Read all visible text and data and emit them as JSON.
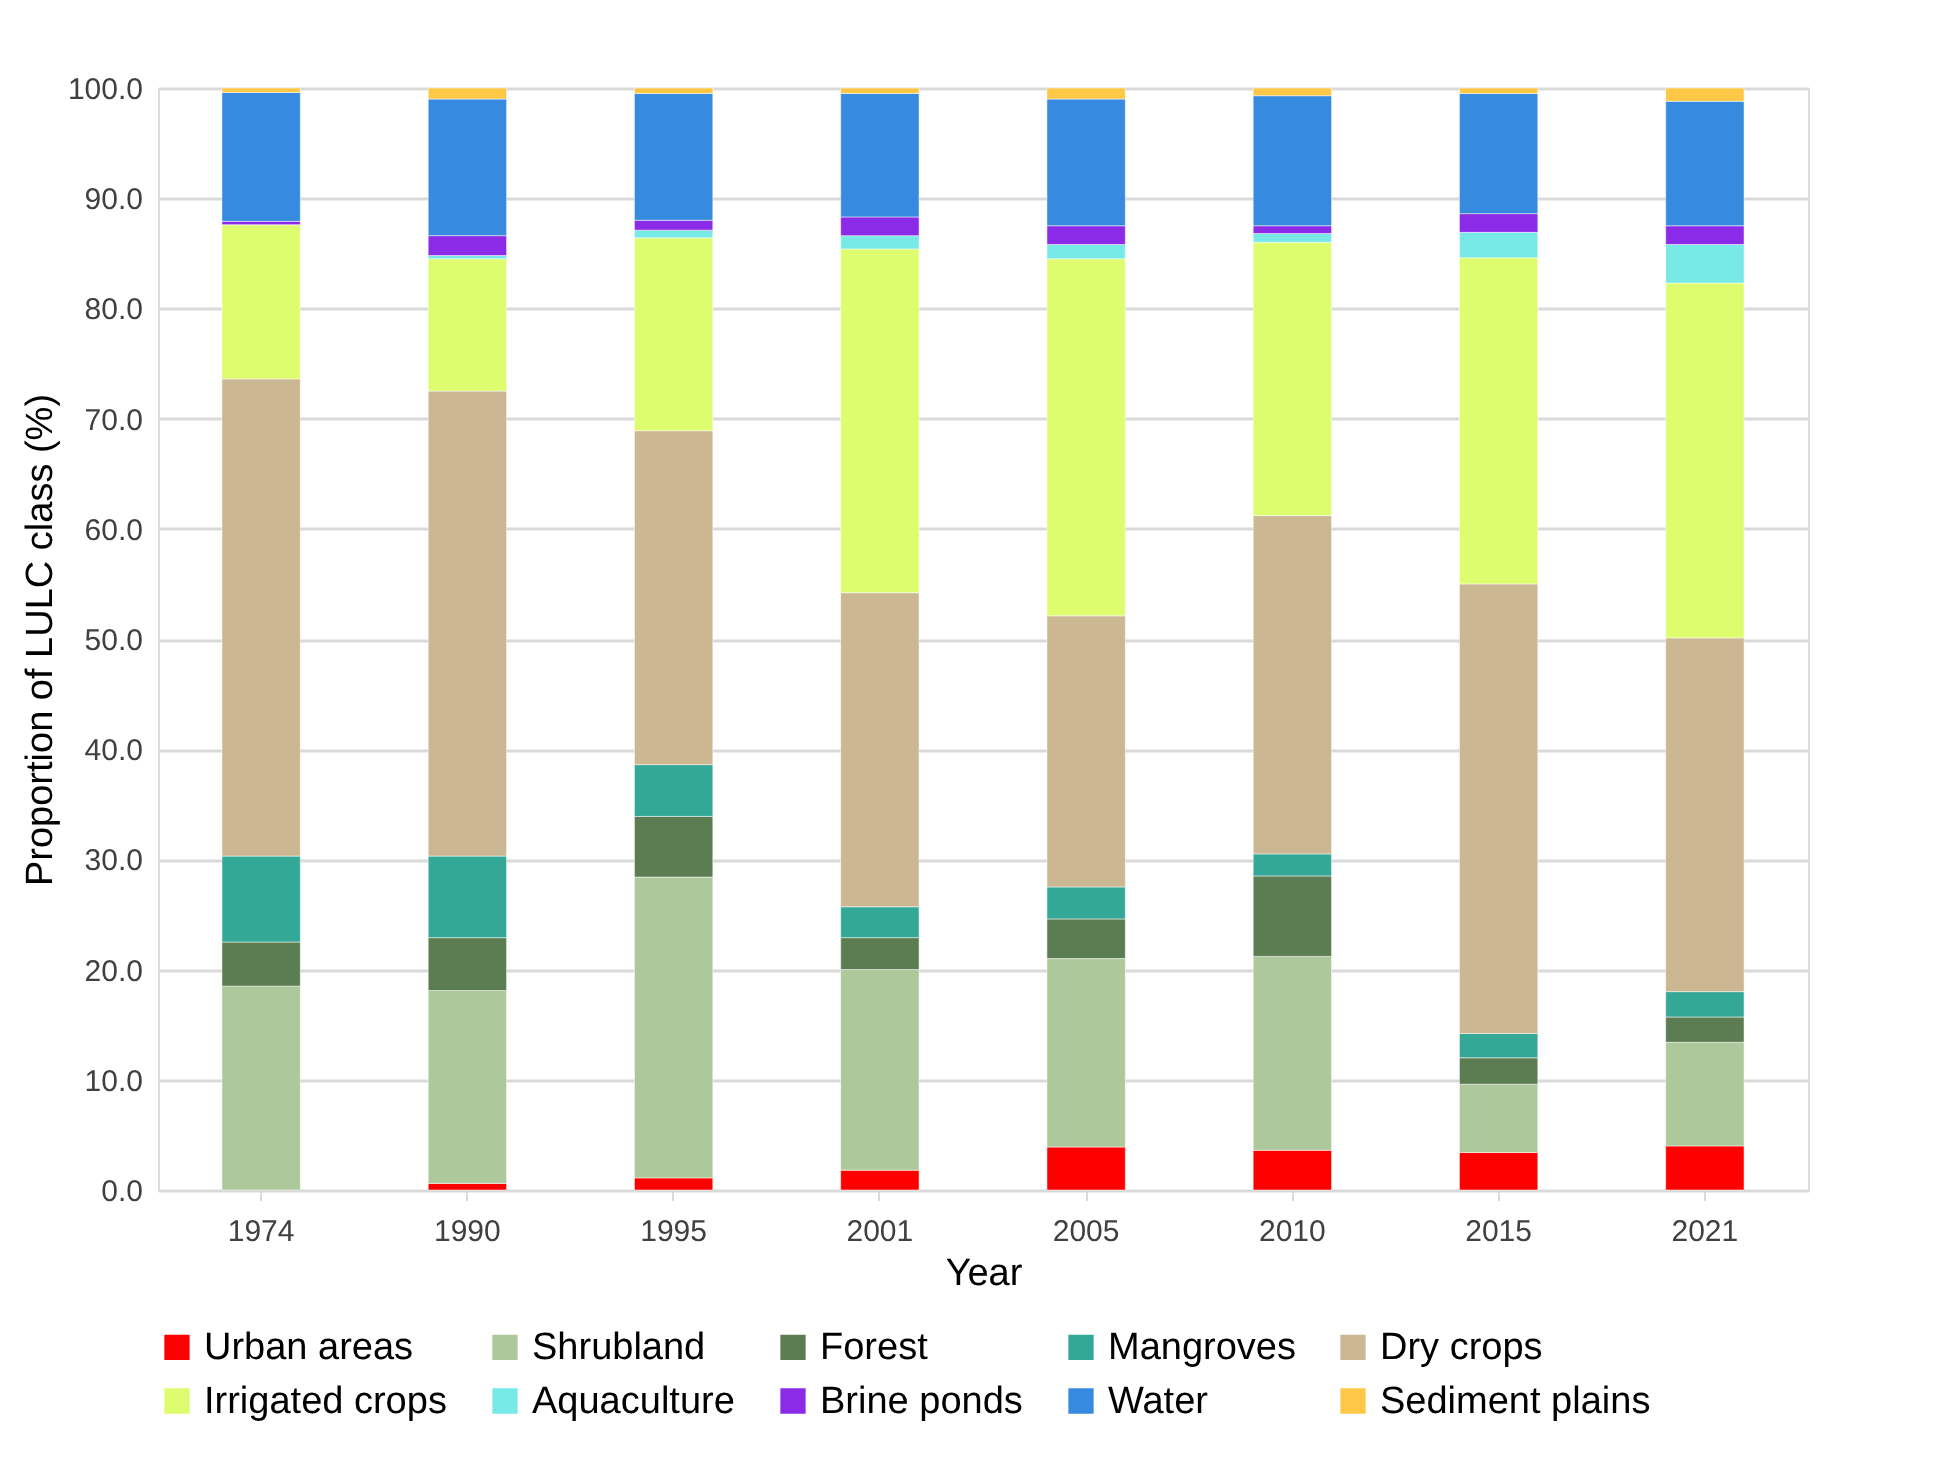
{
  "chart_data": {
    "type": "bar",
    "stacked": true,
    "xlabel": "Year",
    "ylabel": "Proportion of LULC class (%)",
    "categories": [
      "1974",
      "1990",
      "1995",
      "2001",
      "2005",
      "2010",
      "2015",
      "2021"
    ],
    "series": [
      {
        "name": "Urban areas",
        "color": "#ff0000",
        "values": [
          null,
          0.6,
          1.1,
          1.8,
          3.9,
          3.6,
          3.4,
          4.0
        ]
      },
      {
        "name": "Shrubland",
        "color": "#adc99b",
        "values": [
          18.5,
          17.5,
          27.3,
          18.2,
          17.1,
          17.6,
          6.2,
          9.4
        ]
      },
      {
        "name": "Forest",
        "color": "#5c7d52",
        "values": [
          4.0,
          4.8,
          5.5,
          2.9,
          3.6,
          7.3,
          2.4,
          2.3
        ]
      },
      {
        "name": "Mangroves",
        "color": "#33a896",
        "values": [
          7.8,
          7.4,
          4.7,
          2.8,
          2.9,
          2.0,
          2.2,
          2.3
        ]
      },
      {
        "name": "Dry crops",
        "color": "#ccb793",
        "values": [
          43.3,
          42.2,
          30.3,
          28.5,
          24.6,
          30.7,
          40.8,
          32.1
        ]
      },
      {
        "name": "Irrigated crops",
        "color": "#ddfd6f",
        "values": [
          14.0,
          12.0,
          17.5,
          31.2,
          32.4,
          24.8,
          29.6,
          32.2
        ]
      },
      {
        "name": "Aquaculture",
        "color": "#77e9e6",
        "values": [
          0.0,
          0.3,
          0.7,
          1.2,
          1.3,
          0.8,
          2.3,
          3.5
        ]
      },
      {
        "name": "Brine ponds",
        "color": "#8b2be8",
        "values": [
          0.3,
          1.8,
          0.9,
          1.7,
          1.7,
          0.7,
          1.7,
          1.7
        ]
      },
      {
        "name": "Water",
        "color": "#368ae0",
        "values": [
          11.7,
          12.4,
          11.5,
          11.2,
          11.5,
          11.8,
          10.9,
          11.3
        ]
      },
      {
        "name": "Sediment plains",
        "color": "#fec746",
        "values": [
          0.4,
          1.0,
          0.5,
          0.5,
          1.0,
          0.7,
          0.5,
          1.2
        ]
      }
    ],
    "ylim": [
      0,
      100
    ],
    "yticks": [
      {
        "value": 0,
        "label": "0.0"
      },
      {
        "value": 10,
        "label": "10.0"
      },
      {
        "value": 20,
        "label": "20.0"
      },
      {
        "value": 30,
        "label": "30.0"
      },
      {
        "value": 40,
        "label": "40.0"
      },
      {
        "value": 50,
        "label": "50.0"
      },
      {
        "value": 60,
        "label": "60.0"
      },
      {
        "value": 70,
        "label": "70.0"
      },
      {
        "value": 80,
        "label": "80.0"
      },
      {
        "value": 90,
        "label": "90.0"
      },
      {
        "value": 100,
        "label": "100.0"
      }
    ],
    "grid": "y",
    "legend": "bottom"
  }
}
